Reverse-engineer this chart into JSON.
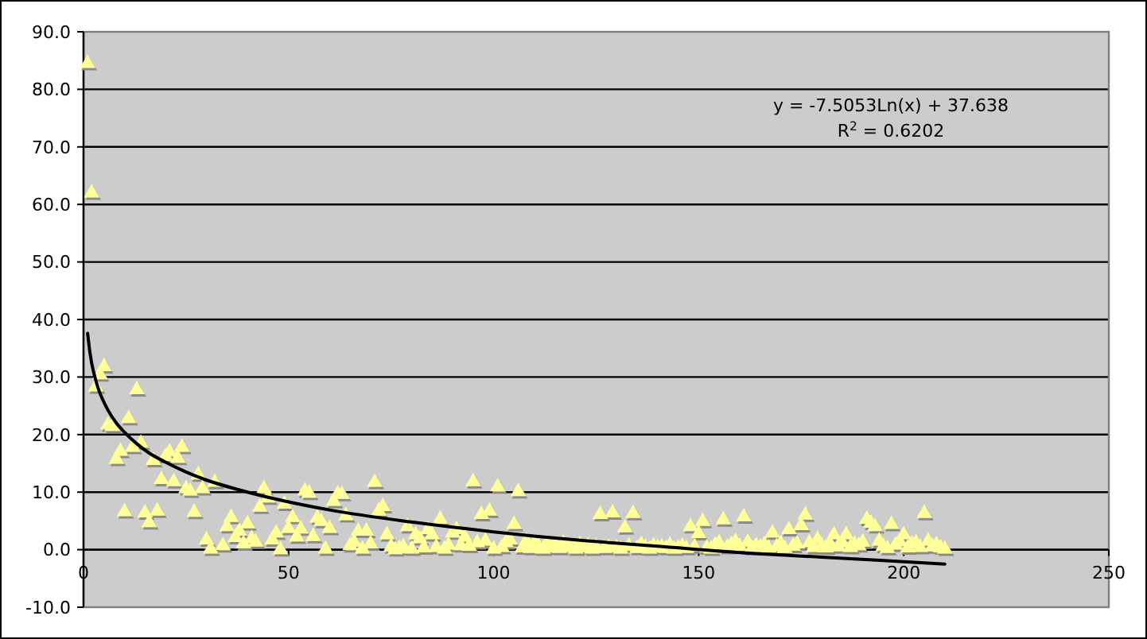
{
  "chart_data": {
    "type": "scatter",
    "series": [
      {
        "color": "#ffff99",
        "marker": "triangle",
        "x": [
          1,
          2,
          3,
          4,
          5,
          6,
          7,
          8,
          9,
          10,
          11,
          12,
          13,
          14,
          15,
          16,
          17,
          18,
          19,
          20,
          21,
          22,
          23,
          24,
          25,
          26,
          27,
          28,
          29,
          30,
          31,
          32,
          34,
          35,
          36,
          37,
          38,
          39,
          40,
          41,
          42,
          43,
          44,
          45,
          46,
          47,
          48,
          49,
          50,
          51,
          52,
          53,
          54,
          55,
          56,
          57,
          58,
          59,
          60,
          61,
          62,
          63,
          64,
          65,
          66,
          67,
          68,
          69,
          70,
          71,
          72,
          73,
          74,
          75,
          76,
          77,
          78,
          79,
          80,
          81,
          82,
          83,
          84,
          85,
          86,
          87,
          88,
          89,
          90,
          91,
          92,
          93,
          94,
          95,
          96,
          97,
          98,
          99,
          100,
          101,
          102,
          103,
          104,
          105,
          106,
          107,
          108,
          109,
          110,
          111,
          112,
          113,
          114,
          115,
          116,
          117,
          118,
          119,
          120,
          121,
          122,
          123,
          124,
          125,
          126,
          127,
          128,
          129,
          130,
          131,
          132,
          133,
          134,
          135,
          136,
          137,
          138,
          139,
          140,
          141,
          142,
          143,
          144,
          145,
          146,
          147,
          148,
          149,
          150,
          151,
          152,
          153,
          154,
          155,
          156,
          157,
          158,
          159,
          160,
          161,
          162,
          163,
          164,
          165,
          166,
          167,
          168,
          169,
          170,
          171,
          172,
          173,
          174,
          175,
          176,
          177,
          178,
          179,
          180,
          181,
          182,
          183,
          184,
          185,
          186,
          187,
          188,
          189,
          190,
          191,
          192,
          193,
          194,
          195,
          196,
          197,
          198,
          199,
          200,
          201,
          202,
          203,
          204,
          205,
          206,
          207,
          208,
          209,
          210
        ],
        "values": [
          84.5,
          62.0,
          28.3,
          30.4,
          31.8,
          21.7,
          21.4,
          15.7,
          17.1,
          6.6,
          22.8,
          17.8,
          27.8,
          18.5,
          6.4,
          4.7,
          15.5,
          6.7,
          12.2,
          16.2,
          17.0,
          11.8,
          15.9,
          17.8,
          10.6,
          10.2,
          6.5,
          13.0,
          10.6,
          1.7,
          0.1,
          11.7,
          0.7,
          4.0,
          5.6,
          2.1,
          3.2,
          1.0,
          4.5,
          1.9,
          1.3,
          7.4,
          10.6,
          9.0,
          1.7,
          2.9,
          0.0,
          7.9,
          3.7,
          5.6,
          2.2,
          3.6,
          10.2,
          9.8,
          2.3,
          5.5,
          4.9,
          0.1,
          3.7,
          8.4,
          9.7,
          9.6,
          5.9,
          0.7,
          1.3,
          3.2,
          0.1,
          3.2,
          1.0,
          11.7,
          6.7,
          7.5,
          2.6,
          0.5,
          0.0,
          0.2,
          0.5,
          4.0,
          0.1,
          2.6,
          1.9,
          0.3,
          3.5,
          2.6,
          0.4,
          5.3,
          0.1,
          0.8,
          2.9,
          3.5,
          0.7,
          2.2,
          0.6,
          11.8,
          1.2,
          6.1,
          1.5,
          6.7,
          0.1,
          10.9,
          0.4,
          1.2,
          1.7,
          4.4,
          10.1,
          0.3,
          1.5,
          0.2,
          1.2,
          0.5,
          0.1,
          1.0,
          0.3,
          0.8,
          0.2,
          1.1,
          0.4,
          0.6,
          0.1,
          0.9,
          0.3,
          0.7,
          0.1,
          0.5,
          6.1,
          0.2,
          0.4,
          6.4,
          0.3,
          0.1,
          3.8,
          0.6,
          6.3,
          0.2,
          0.9,
          0.4,
          0.1,
          0.7,
          0.3,
          0.5,
          0.2,
          0.8,
          0.1,
          0.3,
          0.6,
          0.2,
          4.0,
          0.5,
          2.8,
          4.9,
          0.3,
          0.1,
          0.8,
          1.2,
          5.2,
          0.4,
          0.9,
          1.4,
          0.6,
          5.7,
          1.3,
          0.2,
          0.7,
          0.4,
          0.9,
          0.3,
          2.9,
          0.5,
          1.1,
          0.2,
          3.5,
          0.6,
          1.0,
          4.2,
          6.0,
          1.2,
          0.4,
          1.8,
          0.7,
          0.3,
          1.0,
          2.6,
          0.5,
          1.2,
          2.6,
          0.4,
          0.9,
          0.7,
          1.3,
          5.3,
          4.6,
          4.0,
          1.5,
          0.6,
          0.2,
          4.4,
          0.8,
          1.4,
          2.6,
          0.3,
          1.0,
          1.2,
          0.4,
          6.3,
          1.5,
          0.5,
          0.9,
          0.3,
          0.1
        ]
      },
      {
        "type": "line",
        "color": "#000000",
        "marker": "none",
        "x": [
          1,
          1.5,
          2,
          3,
          4,
          5,
          6,
          8,
          10,
          13,
          16,
          20,
          25,
          30,
          40,
          50,
          60,
          80,
          100,
          120,
          140,
          160,
          180,
          210
        ],
        "values": [
          37.6,
          34.6,
          32.4,
          29.4,
          27.2,
          25.6,
          24.2,
          22.0,
          20.4,
          18.4,
          16.8,
          15.2,
          13.5,
          12.1,
          10.0,
          8.3,
          6.9,
          4.8,
          3.1,
          1.7,
          0.6,
          -0.5,
          -1.3,
          -2.5
        ]
      }
    ],
    "xlim": [
      0,
      250
    ],
    "xticks": [
      0,
      50,
      100,
      150,
      200,
      250
    ],
    "ylim": [
      -10,
      90
    ],
    "yticks": [
      {
        "value": -10,
        "label": "-10.0"
      },
      {
        "value": 0,
        "label": "0.0"
      },
      {
        "value": 10,
        "label": "10.0"
      },
      {
        "value": 20,
        "label": "20.0"
      },
      {
        "value": 30,
        "label": "30.0"
      },
      {
        "value": 40,
        "label": "40.0"
      },
      {
        "value": 50,
        "label": "50.0"
      },
      {
        "value": 60,
        "label": "60.0"
      },
      {
        "value": 70,
        "label": "70.0"
      },
      {
        "value": 80,
        "label": "80.0"
      },
      {
        "value": 90,
        "label": "90.0"
      }
    ],
    "grid": "y",
    "annotations": [
      "y = -7.5053Ln(x) + 37.638",
      "R$^{2}$ = 0.6202"
    ]
  }
}
